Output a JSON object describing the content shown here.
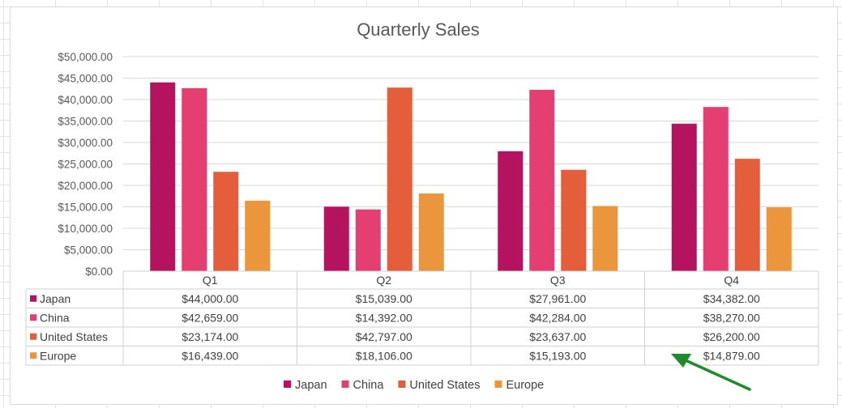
{
  "chart_data": {
    "type": "bar",
    "title": "Quarterly Sales",
    "categories": [
      "Q1",
      "Q2",
      "Q3",
      "Q4"
    ],
    "series": [
      {
        "name": "Japan",
        "color": "#b5135f",
        "values": [
          44000,
          15039,
          27961,
          34382
        ]
      },
      {
        "name": "China",
        "color": "#e43e72",
        "values": [
          42659,
          14392,
          42284,
          38270
        ]
      },
      {
        "name": "United States",
        "color": "#e55e3c",
        "values": [
          23174,
          42797,
          23637,
          26200
        ]
      },
      {
        "name": "Europe",
        "color": "#eb953c",
        "values": [
          16439,
          18106,
          15193,
          14879
        ]
      }
    ],
    "ylim": [
      0,
      50000
    ],
    "ytick_step": 5000,
    "yticks": [
      "$0.00",
      "$5,000.00",
      "$10,000.00",
      "$15,000.00",
      "$20,000.00",
      "$25,000.00",
      "$30,000.00",
      "$35,000.00",
      "$40,000.00",
      "$45,000.00",
      "$50,000.00"
    ],
    "data_table": [
      [
        "$44,000.00",
        "$15,039.00",
        "$27,961.00",
        "$34,382.00"
      ],
      [
        "$42,659.00",
        "$14,392.00",
        "$42,284.00",
        "$38,270.00"
      ],
      [
        "$23,174.00",
        "$42,797.00",
        "$23,637.00",
        "$26,200.00"
      ],
      [
        "$16,439.00",
        "$18,106.00",
        "$15,193.00",
        "$14,879.00"
      ]
    ],
    "grid": true,
    "legend": "bottom",
    "annotation": {
      "type": "arrow",
      "color": "#1e8c2a"
    }
  }
}
